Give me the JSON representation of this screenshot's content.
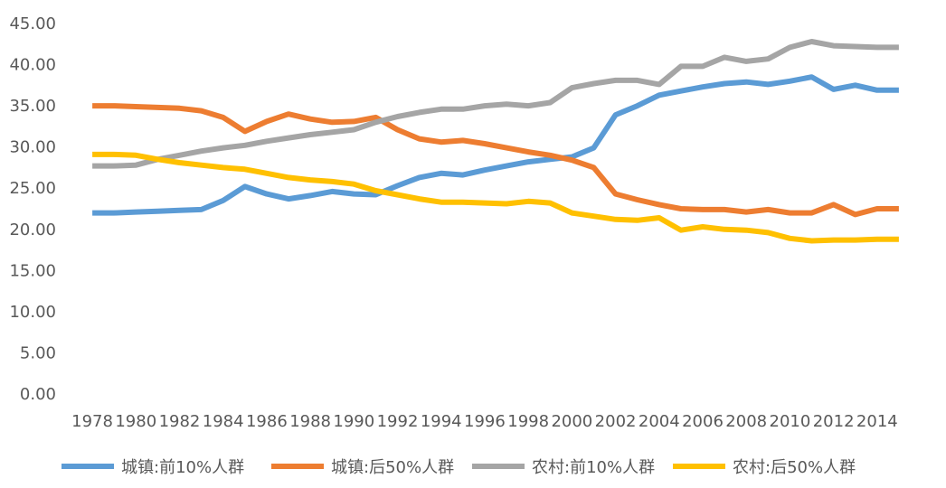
{
  "chart_data": {
    "type": "line",
    "title": "",
    "xlabel": "",
    "ylabel": "",
    "ylim": [
      0,
      45
    ],
    "y_ticks": [
      "0.00",
      "5.00",
      "10.00",
      "15.00",
      "20.00",
      "25.00",
      "30.00",
      "35.00",
      "40.00",
      "45.00"
    ],
    "x": [
      1978,
      1979,
      1980,
      1981,
      1982,
      1983,
      1984,
      1985,
      1986,
      1987,
      1988,
      1989,
      1990,
      1991,
      1992,
      1993,
      1994,
      1995,
      1996,
      1997,
      1998,
      1999,
      2000,
      2001,
      2002,
      2003,
      2004,
      2005,
      2006,
      2007,
      2008,
      2009,
      2010,
      2011,
      2012,
      2013,
      2014,
      2015
    ],
    "x_tick_labels": [
      "1978",
      "1980",
      "1982",
      "1984",
      "1986",
      "1988",
      "1990",
      "1992",
      "1994",
      "1996",
      "1998",
      "2000",
      "2002",
      "2004",
      "2006",
      "2008",
      "2010",
      "2012",
      "2014"
    ],
    "grid": false,
    "legend_position": "bottom",
    "series": [
      {
        "name": "城镇:前10%人群",
        "color": "#5B9BD5",
        "values": [
          22.0,
          22.0,
          22.1,
          22.2,
          22.3,
          22.4,
          23.5,
          25.2,
          24.3,
          23.7,
          24.1,
          24.6,
          24.3,
          24.2,
          25.3,
          26.3,
          26.8,
          26.6,
          27.2,
          27.7,
          28.2,
          28.5,
          28.8,
          29.9,
          33.9,
          35.0,
          36.3,
          36.8,
          37.3,
          37.7,
          37.9,
          37.6,
          38.0,
          38.5,
          37.0,
          37.5,
          36.9,
          36.9
        ]
      },
      {
        "name": "城镇:后50%人群",
        "color": "#ED7D31",
        "values": [
          35.0,
          35.0,
          34.9,
          34.8,
          34.7,
          34.4,
          33.6,
          31.9,
          33.1,
          34.0,
          33.4,
          33.0,
          33.1,
          33.6,
          32.1,
          31.0,
          30.6,
          30.8,
          30.4,
          29.9,
          29.4,
          29.0,
          28.4,
          27.5,
          24.3,
          23.6,
          23.0,
          22.5,
          22.4,
          22.4,
          22.1,
          22.4,
          22.0,
          22.0,
          23.0,
          21.8,
          22.5,
          22.5
        ]
      },
      {
        "name": "农村:前10%人群",
        "color": "#A5A5A5",
        "values": [
          27.7,
          27.7,
          27.8,
          28.5,
          29.0,
          29.5,
          29.9,
          30.2,
          30.7,
          31.1,
          31.5,
          31.8,
          32.1,
          33.0,
          33.7,
          34.2,
          34.6,
          34.6,
          35.0,
          35.2,
          35.0,
          35.4,
          37.2,
          37.7,
          38.1,
          38.1,
          37.6,
          39.8,
          39.8,
          40.9,
          40.4,
          40.7,
          42.1,
          42.8,
          42.3,
          42.2,
          42.1,
          42.1
        ]
      },
      {
        "name": "农村:后50%人群",
        "color": "#FFC000",
        "values": [
          29.1,
          29.1,
          29.0,
          28.5,
          28.1,
          27.8,
          27.5,
          27.3,
          26.8,
          26.3,
          26.0,
          25.8,
          25.5,
          24.7,
          24.2,
          23.7,
          23.3,
          23.3,
          23.2,
          23.1,
          23.4,
          23.2,
          22.0,
          21.6,
          21.2,
          21.1,
          21.4,
          19.9,
          20.3,
          20.0,
          19.9,
          19.6,
          18.9,
          18.6,
          18.7,
          18.7,
          18.8,
          18.8
        ]
      }
    ]
  }
}
